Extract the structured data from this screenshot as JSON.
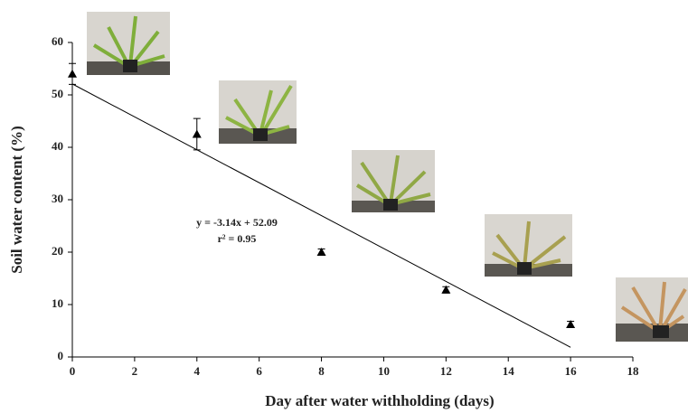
{
  "chart_data": {
    "type": "scatter",
    "x_label": "Day after water withholding (days)",
    "y_label": "Soil water content (%)",
    "x": [
      0,
      4,
      8,
      12,
      16
    ],
    "values": [
      54,
      42.5,
      20,
      12.8,
      6.2
    ],
    "errors": [
      2,
      3,
      0.6,
      0.6,
      0.6
    ],
    "color": "#000000",
    "trendline": {
      "x": [
        0,
        16
      ],
      "values": [
        52.09,
        1.85
      ]
    },
    "annotations": [
      "y = -3.14x + 52.09",
      "r² = 0.95"
    ],
    "xlim": [
      0,
      18
    ],
    "xticks": [
      0,
      2,
      4,
      6,
      8,
      10,
      12,
      14,
      16,
      18
    ],
    "ylim": [
      0,
      60
    ],
    "yticks": [
      0,
      10,
      20,
      30,
      40,
      50,
      60
    ],
    "grid": false
  }
}
